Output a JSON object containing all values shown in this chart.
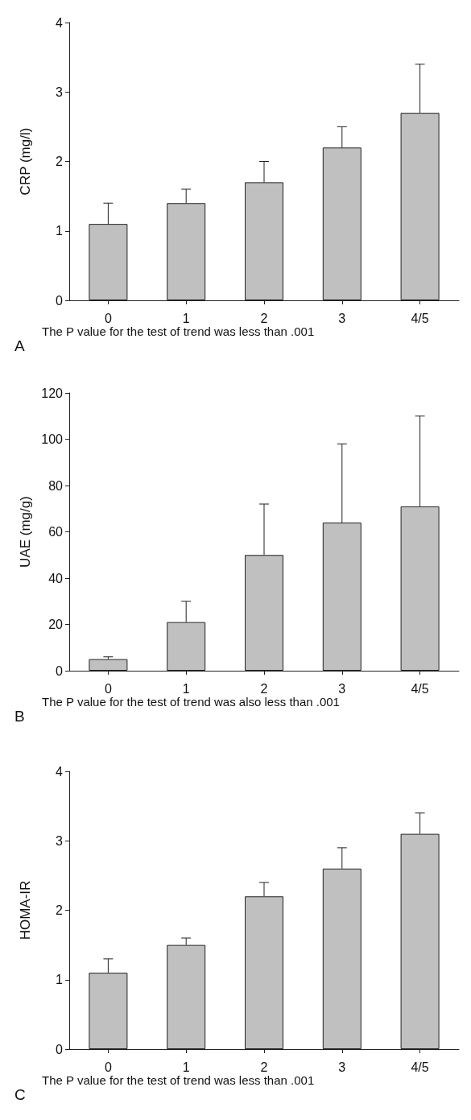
{
  "chart_data": [
    {
      "type": "bar",
      "ylabel": "CRP (mg/l)",
      "categories": [
        "0",
        "1",
        "2",
        "3",
        "4/5"
      ],
      "values": [
        1.1,
        1.4,
        1.7,
        2.2,
        2.7
      ],
      "errors": [
        [
          1.1,
          1.4
        ],
        [
          1.4,
          1.6
        ],
        [
          1.7,
          2.0
        ],
        [
          2.2,
          2.5
        ],
        [
          2.7,
          3.4
        ]
      ],
      "color": "#c0c0c0",
      "ylim": [
        0,
        4
      ],
      "yticks": [
        0,
        1,
        2,
        3,
        4
      ],
      "grid": false,
      "annotations": [
        "A",
        "The P value for the test of trend was less than .001"
      ]
    },
    {
      "type": "bar",
      "ylabel": "UAE (mg/g)",
      "categories": [
        "0",
        "1",
        "2",
        "3",
        "4/5"
      ],
      "values": [
        5,
        21,
        50,
        64,
        71
      ],
      "errors": [
        [
          5,
          6
        ],
        [
          21,
          30
        ],
        [
          50,
          72
        ],
        [
          64,
          98
        ],
        [
          71,
          110
        ]
      ],
      "color": "#c0c0c0",
      "ylim": [
        0,
        120
      ],
      "yticks": [
        0,
        20,
        40,
        60,
        80,
        100,
        120
      ],
      "grid": false,
      "annotations": [
        "B",
        "The P value for the test of trend was also less than .001"
      ]
    },
    {
      "type": "bar",
      "ylabel": "HOMA-IR",
      "categories": [
        "0",
        "1",
        "2",
        "3",
        "4/5"
      ],
      "values": [
        1.1,
        1.5,
        2.2,
        2.6,
        3.1
      ],
      "errors": [
        [
          1.1,
          1.3
        ],
        [
          1.5,
          1.6
        ],
        [
          2.2,
          2.4
        ],
        [
          2.6,
          2.9
        ],
        [
          3.1,
          3.4
        ]
      ],
      "color": "#c0c0c0",
      "ylim": [
        0,
        4
      ],
      "yticks": [
        0,
        1,
        2,
        3,
        4
      ],
      "grid": false,
      "annotations": [
        "C",
        "The P value for the test of trend was less than .001"
      ]
    }
  ]
}
